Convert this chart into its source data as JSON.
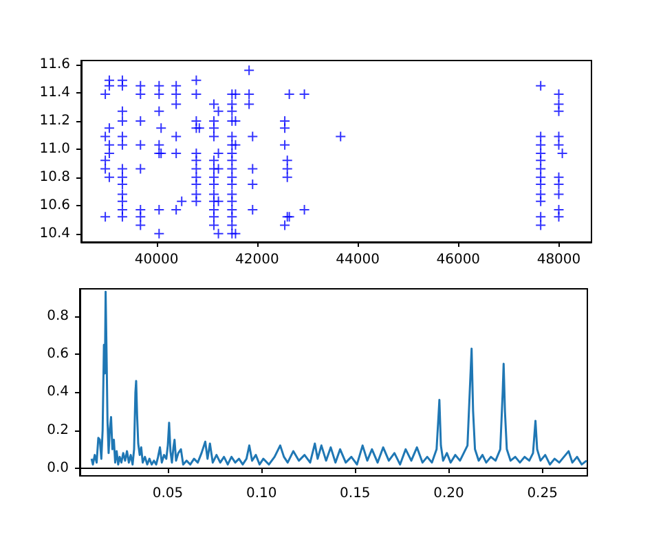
{
  "chart_data": [
    {
      "type": "scatter",
      "color": "#0000ff",
      "marker": "cross",
      "x": [
        38980,
        38980,
        38980,
        38980,
        38980,
        39060,
        39060,
        39060,
        39060,
        39060,
        39060,
        39320,
        39320,
        39320,
        39320,
        39320,
        39320,
        39320,
        39320,
        39320,
        39320,
        39320,
        39320,
        39320,
        39680,
        39680,
        39680,
        39680,
        39680,
        39680,
        39680,
        39680,
        40050,
        40050,
        40050,
        40050,
        40050,
        40050,
        40050,
        40090,
        40090,
        40390,
        40390,
        40390,
        40390,
        40390,
        40390,
        40500,
        40790,
        40790,
        40790,
        40790,
        40790,
        40790,
        40790,
        40790,
        40790,
        40790,
        40790,
        40850,
        41140,
        41140,
        41140,
        41140,
        41140,
        41140,
        41140,
        41140,
        41140,
        41140,
        41140,
        41140,
        41140,
        41230,
        41230,
        41230,
        41230,
        41230,
        41500,
        41500,
        41500,
        41500,
        41500,
        41500,
        41500,
        41500,
        41500,
        41500,
        41500,
        41500,
        41500,
        41500,
        41500,
        41500,
        41500,
        41570,
        41570,
        41570,
        41570,
        41840,
        41840,
        41840,
        41910,
        41910,
        41910,
        41910,
        42550,
        42550,
        42550,
        42550,
        42600,
        42600,
        42600,
        42600,
        42640,
        42640,
        42940,
        42940,
        43660,
        47640,
        47640,
        47640,
        47640,
        47640,
        47640,
        47640,
        47640,
        47640,
        47640,
        47640,
        47640,
        48000,
        48000,
        48000,
        48000,
        48000,
        48000,
        48000,
        48000,
        48000,
        48000,
        48070
      ],
      "values": [
        10.52,
        10.86,
        10.92,
        11.09,
        11.39,
        11.49,
        11.45,
        11.15,
        11.03,
        10.97,
        10.8,
        11.49,
        11.45,
        11.27,
        11.2,
        11.09,
        11.03,
        10.86,
        10.8,
        10.75,
        10.68,
        10.63,
        10.57,
        10.52,
        11.45,
        11.39,
        11.2,
        11.03,
        10.86,
        10.57,
        10.52,
        10.46,
        11.45,
        11.39,
        11.27,
        11.03,
        10.97,
        10.57,
        10.4,
        11.15,
        10.97,
        11.45,
        11.39,
        11.32,
        11.09,
        10.97,
        10.57,
        10.63,
        11.49,
        11.39,
        11.2,
        11.15,
        10.97,
        10.92,
        10.86,
        10.8,
        10.75,
        10.68,
        10.63,
        11.15,
        11.32,
        11.2,
        11.15,
        11.09,
        10.92,
        10.86,
        10.8,
        10.75,
        10.68,
        10.63,
        10.57,
        10.52,
        10.46,
        11.27,
        10.97,
        10.86,
        10.63,
        10.4,
        11.39,
        11.32,
        11.27,
        11.2,
        11.09,
        11.03,
        10.97,
        10.92,
        10.86,
        10.8,
        10.75,
        10.68,
        10.63,
        10.57,
        10.52,
        10.46,
        10.4,
        11.39,
        11.2,
        11.03,
        10.4,
        11.56,
        11.39,
        11.32,
        11.09,
        10.86,
        10.75,
        10.57,
        11.2,
        11.15,
        11.03,
        10.46,
        10.92,
        10.86,
        10.8,
        10.52,
        11.39,
        10.52,
        11.39,
        10.57,
        11.09,
        11.45,
        11.09,
        11.03,
        10.97,
        10.92,
        10.86,
        10.8,
        10.75,
        10.68,
        10.63,
        10.52,
        10.46,
        11.39,
        11.32,
        11.27,
        11.09,
        11.03,
        10.8,
        10.75,
        10.68,
        10.57,
        10.52,
        10.97
      ],
      "xlim": [
        38500,
        48650
      ],
      "ylim": [
        10.34,
        11.63
      ],
      "xticks": [
        40000,
        42000,
        44000,
        46000,
        48000
      ],
      "yticks": [
        10.4,
        10.6,
        10.8,
        {
          "value": 11.0,
          "label": "11.0"
        },
        11.2,
        11.4,
        11.6
      ]
    },
    {
      "type": "line",
      "color": "#1f77b4",
      "x": [
        0.0093,
        0.01,
        0.011,
        0.012,
        0.0129,
        0.0137,
        0.0145,
        0.0152,
        0.0159,
        0.0164,
        0.0168,
        0.0173,
        0.0178,
        0.0184,
        0.019,
        0.0197,
        0.0204,
        0.0212,
        0.0219,
        0.0227,
        0.0235,
        0.0243,
        0.0252,
        0.0262,
        0.0272,
        0.0282,
        0.0292,
        0.0302,
        0.0312,
        0.032,
        0.0327,
        0.0331,
        0.0336,
        0.0342,
        0.035,
        0.0358,
        0.0366,
        0.0378,
        0.039,
        0.0402,
        0.0414,
        0.0426,
        0.0438,
        0.0448,
        0.0458,
        0.0468,
        0.048,
        0.0492,
        0.05,
        0.0507,
        0.0514,
        0.0522,
        0.053,
        0.0536,
        0.0544,
        0.0556,
        0.057,
        0.0582,
        0.06,
        0.062,
        0.064,
        0.066,
        0.068,
        0.07,
        0.0712,
        0.0725,
        0.074,
        0.076,
        0.078,
        0.08,
        0.082,
        0.084,
        0.086,
        0.088,
        0.09,
        0.092,
        0.0935,
        0.095,
        0.097,
        0.099,
        0.101,
        0.104,
        0.107,
        0.11,
        0.112,
        0.114,
        0.117,
        0.12,
        0.123,
        0.126,
        0.1285,
        0.13,
        0.132,
        0.1345,
        0.137,
        0.1395,
        0.142,
        0.145,
        0.148,
        0.151,
        0.154,
        0.1565,
        0.159,
        0.162,
        0.165,
        0.168,
        0.171,
        0.174,
        0.177,
        0.18,
        0.183,
        0.186,
        0.1885,
        0.191,
        0.1935,
        0.1945,
        0.195,
        0.1958,
        0.197,
        0.199,
        0.201,
        0.2035,
        0.206,
        0.2085,
        0.21,
        0.2112,
        0.2122,
        0.213,
        0.214,
        0.216,
        0.218,
        0.22,
        0.2225,
        0.225,
        0.2275,
        0.2288,
        0.2293,
        0.23,
        0.231,
        0.233,
        0.2355,
        0.238,
        0.2405,
        0.243,
        0.245,
        0.2463,
        0.2472,
        0.249,
        0.2515,
        0.254,
        0.2565,
        0.259,
        0.2615,
        0.264,
        0.266,
        0.2685,
        0.271,
        0.2736
      ],
      "values": [
        0.05,
        0.02,
        0.07,
        0.03,
        0.16,
        0.15,
        0.05,
        0.2,
        0.65,
        0.5,
        0.93,
        0.6,
        0.25,
        0.08,
        0.2,
        0.27,
        0.1,
        0.15,
        0.03,
        0.09,
        0.02,
        0.06,
        0.03,
        0.08,
        0.04,
        0.09,
        0.03,
        0.07,
        0.02,
        0.1,
        0.4,
        0.46,
        0.28,
        0.13,
        0.07,
        0.11,
        0.03,
        0.06,
        0.02,
        0.05,
        0.02,
        0.04,
        0.02,
        0.06,
        0.11,
        0.03,
        0.07,
        0.05,
        0.12,
        0.24,
        0.09,
        0.03,
        0.11,
        0.15,
        0.04,
        0.08,
        0.1,
        0.02,
        0.04,
        0.02,
        0.05,
        0.03,
        0.08,
        0.14,
        0.05,
        0.13,
        0.03,
        0.07,
        0.03,
        0.06,
        0.02,
        0.06,
        0.03,
        0.05,
        0.02,
        0.05,
        0.12,
        0.04,
        0.07,
        0.02,
        0.05,
        0.02,
        0.06,
        0.12,
        0.06,
        0.03,
        0.09,
        0.04,
        0.07,
        0.03,
        0.13,
        0.05,
        0.12,
        0.04,
        0.11,
        0.03,
        0.1,
        0.03,
        0.06,
        0.02,
        0.12,
        0.04,
        0.1,
        0.03,
        0.11,
        0.04,
        0.08,
        0.02,
        0.1,
        0.04,
        0.11,
        0.03,
        0.06,
        0.03,
        0.1,
        0.27,
        0.36,
        0.12,
        0.04,
        0.08,
        0.03,
        0.07,
        0.04,
        0.09,
        0.12,
        0.4,
        0.63,
        0.3,
        0.1,
        0.04,
        0.07,
        0.03,
        0.06,
        0.04,
        0.1,
        0.4,
        0.55,
        0.3,
        0.1,
        0.04,
        0.06,
        0.03,
        0.06,
        0.04,
        0.08,
        0.25,
        0.1,
        0.04,
        0.07,
        0.02,
        0.05,
        0.03,
        0.06,
        0.09,
        0.03,
        0.06,
        0.02,
        0.04
      ],
      "xlim": [
        0.003,
        0.274
      ],
      "ylim": [
        -0.04,
        0.945
      ],
      "xticks": [
        0.05,
        {
          "value": 0.1,
          "label": "0.10"
        },
        0.15,
        {
          "value": 0.2,
          "label": "0.20"
        },
        0.25
      ],
      "yticks": [
        {
          "value": 0,
          "label": "0.0"
        },
        0.2,
        0.4,
        0.6,
        0.8
      ]
    }
  ]
}
